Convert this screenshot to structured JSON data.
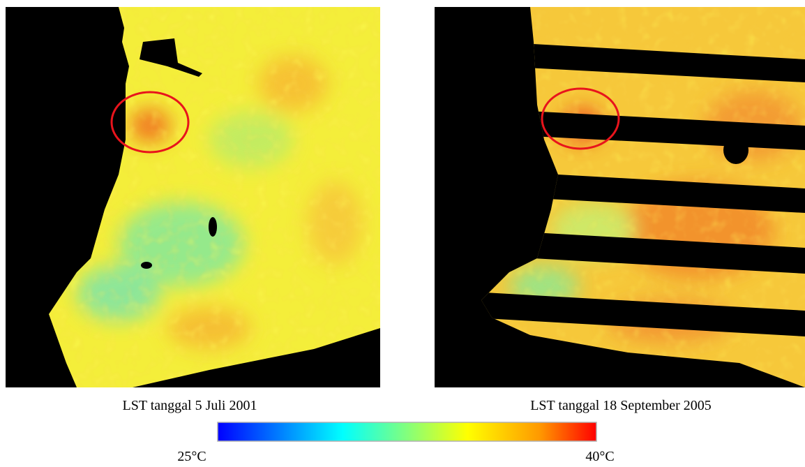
{
  "maps": [
    {
      "caption": "LST tanggal 5 Juli 2001"
    },
    {
      "caption": "LST tanggal 18 September 2005"
    }
  ],
  "colorbar": {
    "min_label": "25°C",
    "max_label": "40°C"
  }
}
